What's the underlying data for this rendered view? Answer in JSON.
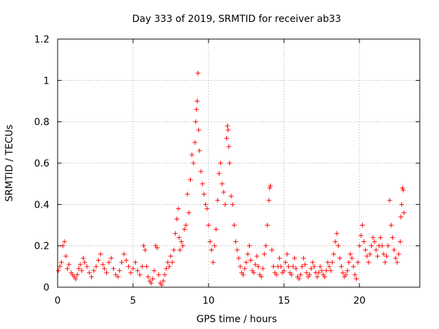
{
  "chart_data": {
    "type": "scatter",
    "title": "Day 333 of 2019, SRMTID for receiver ab33",
    "xlabel": "GPS time / hours",
    "ylabel": "SRMTID / TECUs",
    "xlim": [
      0,
      24
    ],
    "ylim": [
      0,
      1.2
    ],
    "xticks": [
      0,
      5,
      10,
      15,
      20
    ],
    "xtick_labels": [
      "0",
      "5",
      "10",
      "15",
      "20"
    ],
    "yticks": [
      0,
      0.2,
      0.4,
      0.6,
      0.8,
      1,
      1.2
    ],
    "ytick_labels": [
      "0",
      "0.2",
      "0.4",
      "0.6",
      "0.8",
      "1",
      "1.2"
    ],
    "grid": true,
    "marker": "+",
    "color": "#ff0000",
    "series": [
      {
        "name": "SRMTID",
        "points": [
          [
            0.05,
            0.08
          ],
          [
            0.15,
            0.1
          ],
          [
            0.25,
            0.12
          ],
          [
            0.35,
            0.2
          ],
          [
            0.45,
            0.22
          ],
          [
            0.55,
            0.15
          ],
          [
            0.65,
            0.09
          ],
          [
            0.75,
            0.11
          ],
          [
            0.9,
            0.07
          ],
          [
            1.0,
            0.06
          ],
          [
            1.1,
            0.05
          ],
          [
            1.2,
            0.04
          ],
          [
            1.3,
            0.06
          ],
          [
            1.4,
            0.09
          ],
          [
            1.5,
            0.11
          ],
          [
            1.6,
            0.08
          ],
          [
            1.7,
            0.14
          ],
          [
            1.8,
            0.12
          ],
          [
            1.95,
            0.1
          ],
          [
            2.1,
            0.07
          ],
          [
            2.25,
            0.05
          ],
          [
            2.4,
            0.08
          ],
          [
            2.55,
            0.1
          ],
          [
            2.7,
            0.13
          ],
          [
            2.85,
            0.16
          ],
          [
            3.0,
            0.11
          ],
          [
            3.1,
            0.09
          ],
          [
            3.25,
            0.07
          ],
          [
            3.4,
            0.12
          ],
          [
            3.55,
            0.14
          ],
          [
            3.7,
            0.09
          ],
          [
            3.85,
            0.06
          ],
          [
            4.0,
            0.05
          ],
          [
            4.1,
            0.08
          ],
          [
            4.25,
            0.12
          ],
          [
            4.4,
            0.16
          ],
          [
            4.55,
            0.13
          ],
          [
            4.7,
            0.1
          ],
          [
            4.85,
            0.07
          ],
          [
            5.0,
            0.09
          ],
          [
            5.15,
            0.12
          ],
          [
            5.3,
            0.08
          ],
          [
            5.45,
            0.06
          ],
          [
            5.6,
            0.1
          ],
          [
            5.7,
            0.2
          ],
          [
            5.8,
            0.18
          ],
          [
            5.9,
            0.1
          ],
          [
            6.0,
            0.05
          ],
          [
            6.1,
            0.03
          ],
          [
            6.2,
            0.02
          ],
          [
            6.3,
            0.04
          ],
          [
            6.4,
            0.08
          ],
          [
            6.5,
            0.2
          ],
          [
            6.6,
            0.19
          ],
          [
            6.7,
            0.06
          ],
          [
            6.8,
            0.02
          ],
          [
            6.9,
            0.01
          ],
          [
            7.0,
            0.03
          ],
          [
            7.1,
            0.06
          ],
          [
            7.2,
            0.09
          ],
          [
            7.3,
            0.12
          ],
          [
            7.4,
            0.1
          ],
          [
            7.5,
            0.15
          ],
          [
            7.6,
            0.12
          ],
          [
            7.7,
            0.18
          ],
          [
            7.8,
            0.26
          ],
          [
            7.9,
            0.33
          ],
          [
            8.0,
            0.38
          ],
          [
            8.05,
            0.24
          ],
          [
            8.1,
            0.18
          ],
          [
            8.2,
            0.22
          ],
          [
            8.3,
            0.2
          ],
          [
            8.4,
            0.28
          ],
          [
            8.5,
            0.3
          ],
          [
            8.6,
            0.45
          ],
          [
            8.7,
            0.36
          ],
          [
            8.8,
            0.52
          ],
          [
            8.9,
            0.64
          ],
          [
            9.0,
            0.6
          ],
          [
            9.1,
            0.7
          ],
          [
            9.15,
            0.8
          ],
          [
            9.2,
            0.86
          ],
          [
            9.25,
            0.9
          ],
          [
            9.3,
            1.035
          ],
          [
            9.35,
            0.76
          ],
          [
            9.4,
            0.66
          ],
          [
            9.5,
            0.56
          ],
          [
            9.6,
            0.5
          ],
          [
            9.7,
            0.45
          ],
          [
            9.8,
            0.4
          ],
          [
            9.9,
            0.38
          ],
          [
            10.0,
            0.3
          ],
          [
            10.1,
            0.22
          ],
          [
            10.2,
            0.18
          ],
          [
            10.3,
            0.12
          ],
          [
            10.4,
            0.2
          ],
          [
            10.5,
            0.28
          ],
          [
            10.6,
            0.42
          ],
          [
            10.7,
            0.55
          ],
          [
            10.8,
            0.6
          ],
          [
            10.9,
            0.5
          ],
          [
            11.0,
            0.46
          ],
          [
            11.1,
            0.4
          ],
          [
            11.2,
            0.72
          ],
          [
            11.25,
            0.78
          ],
          [
            11.3,
            0.76
          ],
          [
            11.35,
            0.68
          ],
          [
            11.4,
            0.6
          ],
          [
            11.5,
            0.44
          ],
          [
            11.6,
            0.4
          ],
          [
            11.7,
            0.3
          ],
          [
            11.8,
            0.22
          ],
          [
            11.9,
            0.18
          ],
          [
            12.0,
            0.14
          ],
          [
            12.1,
            0.1
          ],
          [
            12.2,
            0.07
          ],
          [
            12.3,
            0.06
          ],
          [
            12.4,
            0.09
          ],
          [
            12.5,
            0.12
          ],
          [
            12.6,
            0.16
          ],
          [
            12.7,
            0.2
          ],
          [
            12.8,
            0.13
          ],
          [
            12.9,
            0.08
          ],
          [
            13.0,
            0.07
          ],
          [
            13.1,
            0.11
          ],
          [
            13.2,
            0.15
          ],
          [
            13.3,
            0.1
          ],
          [
            13.4,
            0.06
          ],
          [
            13.5,
            0.05
          ],
          [
            13.6,
            0.09
          ],
          [
            13.7,
            0.16
          ],
          [
            13.8,
            0.2
          ],
          [
            13.9,
            0.3
          ],
          [
            14.0,
            0.42
          ],
          [
            14.05,
            0.48
          ],
          [
            14.1,
            0.49
          ],
          [
            14.2,
            0.18
          ],
          [
            14.3,
            0.1
          ],
          [
            14.4,
            0.07
          ],
          [
            14.5,
            0.06
          ],
          [
            14.6,
            0.1
          ],
          [
            14.7,
            0.14
          ],
          [
            14.8,
            0.1
          ],
          [
            14.9,
            0.07
          ],
          [
            15.0,
            0.08
          ],
          [
            15.1,
            0.12
          ],
          [
            15.2,
            0.16
          ],
          [
            15.3,
            0.1
          ],
          [
            15.4,
            0.07
          ],
          [
            15.5,
            0.06
          ],
          [
            15.6,
            0.1
          ],
          [
            15.7,
            0.14
          ],
          [
            15.8,
            0.09
          ],
          [
            15.9,
            0.05
          ],
          [
            16.0,
            0.04
          ],
          [
            16.1,
            0.06
          ],
          [
            16.2,
            0.1
          ],
          [
            16.3,
            0.14
          ],
          [
            16.4,
            0.11
          ],
          [
            16.5,
            0.07
          ],
          [
            16.6,
            0.05
          ],
          [
            16.7,
            0.06
          ],
          [
            16.8,
            0.09
          ],
          [
            16.9,
            0.12
          ],
          [
            17.0,
            0.1
          ],
          [
            17.1,
            0.07
          ],
          [
            17.2,
            0.05
          ],
          [
            17.3,
            0.07
          ],
          [
            17.4,
            0.1
          ],
          [
            17.5,
            0.08
          ],
          [
            17.6,
            0.06
          ],
          [
            17.7,
            0.05
          ],
          [
            17.8,
            0.08
          ],
          [
            17.9,
            0.12
          ],
          [
            18.0,
            0.1
          ],
          [
            18.1,
            0.08
          ],
          [
            18.2,
            0.12
          ],
          [
            18.3,
            0.16
          ],
          [
            18.4,
            0.22
          ],
          [
            18.5,
            0.26
          ],
          [
            18.6,
            0.2
          ],
          [
            18.7,
            0.14
          ],
          [
            18.8,
            0.1
          ],
          [
            18.9,
            0.07
          ],
          [
            19.0,
            0.05
          ],
          [
            19.1,
            0.06
          ],
          [
            19.2,
            0.08
          ],
          [
            19.3,
            0.12
          ],
          [
            19.4,
            0.16
          ],
          [
            19.5,
            0.14
          ],
          [
            19.6,
            0.1
          ],
          [
            19.7,
            0.06
          ],
          [
            19.8,
            0.04
          ],
          [
            19.9,
            0.12
          ],
          [
            20.0,
            0.2
          ],
          [
            20.1,
            0.25
          ],
          [
            20.2,
            0.3
          ],
          [
            20.3,
            0.22
          ],
          [
            20.4,
            0.18
          ],
          [
            20.5,
            0.15
          ],
          [
            20.6,
            0.12
          ],
          [
            20.7,
            0.16
          ],
          [
            20.8,
            0.2
          ],
          [
            20.9,
            0.24
          ],
          [
            21.0,
            0.22
          ],
          [
            21.1,
            0.18
          ],
          [
            21.2,
            0.15
          ],
          [
            21.3,
            0.2
          ],
          [
            21.4,
            0.24
          ],
          [
            21.5,
            0.2
          ],
          [
            21.6,
            0.16
          ],
          [
            21.7,
            0.12
          ],
          [
            21.8,
            0.15
          ],
          [
            21.9,
            0.2
          ],
          [
            22.0,
            0.42
          ],
          [
            22.1,
            0.3
          ],
          [
            22.2,
            0.24
          ],
          [
            22.3,
            0.18
          ],
          [
            22.4,
            0.14
          ],
          [
            22.5,
            0.12
          ],
          [
            22.6,
            0.16
          ],
          [
            22.7,
            0.22
          ],
          [
            22.75,
            0.34
          ],
          [
            22.8,
            0.4
          ],
          [
            22.85,
            0.48
          ],
          [
            22.9,
            0.47
          ],
          [
            22.95,
            0.36
          ]
        ]
      }
    ]
  }
}
